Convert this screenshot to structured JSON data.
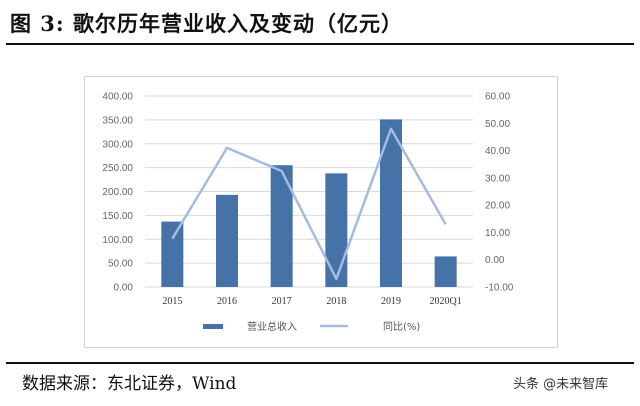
{
  "header": {
    "title": "图 3: 歌尔历年营业收入及变动（亿元）"
  },
  "footer": {
    "source": "数据来源：东北证券，Wind",
    "watermark": "头条 @未来智库"
  },
  "colors": {
    "bar": "#4572a7",
    "line": "#a4bce2",
    "grid": "#d9d9d9"
  },
  "chart_data": {
    "type": "bar",
    "categories": [
      "2015",
      "2016",
      "2017",
      "2018",
      "2019",
      "2020Q1"
    ],
    "series": [
      {
        "name": "营业总收入",
        "type": "bar",
        "axis": "left",
        "values": [
          137.0,
          193.0,
          255.0,
          238.0,
          351.0,
          64.0
        ]
      },
      {
        "name": "同比(%)",
        "type": "line",
        "axis": "right",
        "values": [
          7.7,
          41.0,
          32.5,
          -7.0,
          48.0,
          13.0
        ]
      }
    ],
    "y_left": {
      "min": 0,
      "max": 400,
      "ticks": [
        "0.00",
        "50.00",
        "100.00",
        "150.00",
        "200.00",
        "250.00",
        "300.00",
        "350.00",
        "400.00"
      ]
    },
    "y_right": {
      "min": -10,
      "max": 60,
      "ticks": [
        "-10.00",
        "0.00",
        "10.00",
        "20.00",
        "30.00",
        "40.00",
        "50.00",
        "60.00"
      ]
    },
    "grid": true,
    "legend_position": "bottom"
  }
}
